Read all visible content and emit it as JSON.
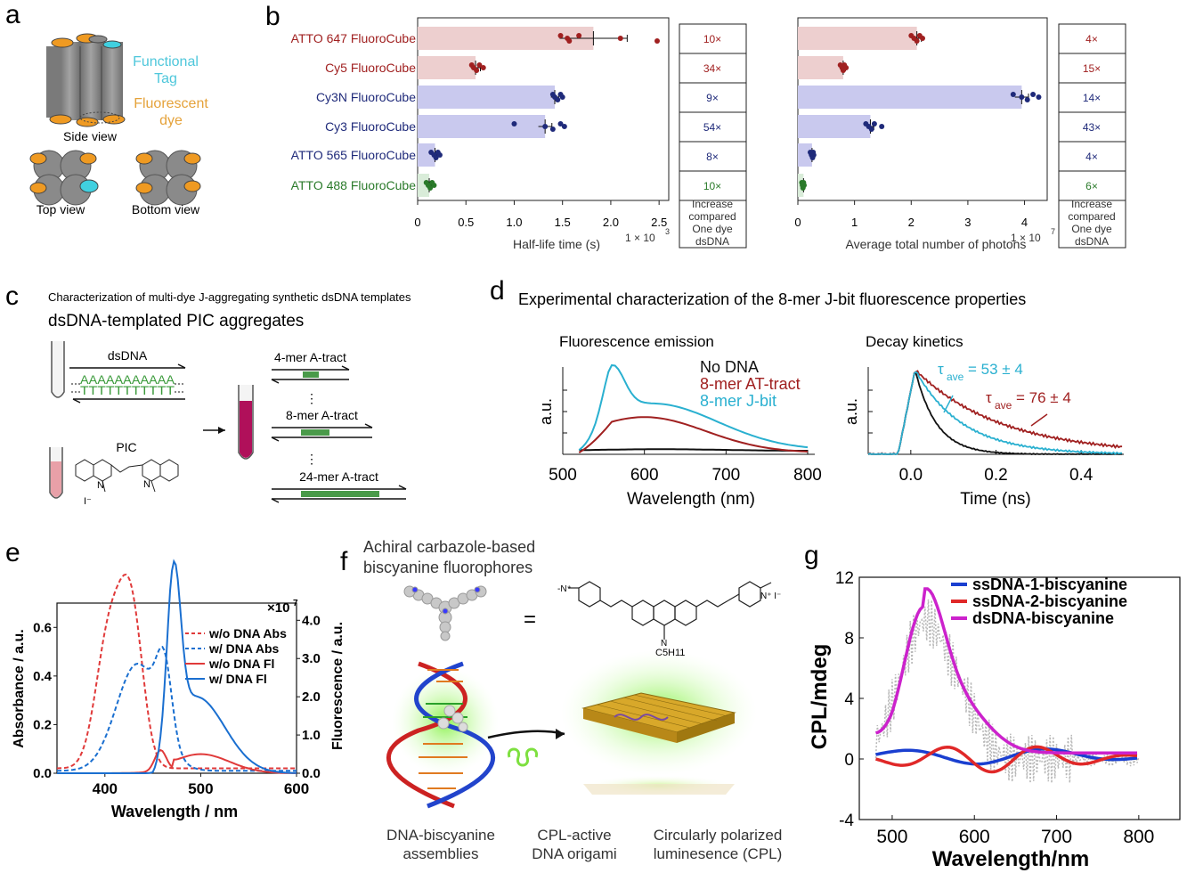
{
  "colors": {
    "bar_red": "#edcfcf",
    "bar_blue": "#c9c9ee",
    "bar_green": "#d9ecd9",
    "red": "#a02020",
    "navy": "#1f2a7a",
    "green": "#2a7a2a",
    "cyan": "#2ab0d0",
    "orange": "#ef9a22",
    "grey": "#8a8a8a",
    "magenta": "#cc22cc",
    "blue": "#1a4fd6"
  },
  "panel_a": {
    "letter": "a",
    "functional_tag": [
      "Functional",
      "Tag"
    ],
    "fluorescent_dye": [
      "Fluorescent",
      "dye"
    ],
    "side_view": "Side view",
    "top_view": "Top view",
    "bottom_view": "Bottom view"
  },
  "panel_b": {
    "letter": "b",
    "rows": [
      {
        "label": "ATTO 647 FluoroCube",
        "color": "red",
        "half_life": 1.82,
        "half_life_err": 0.35,
        "photons": 2.1,
        "photons_err": 0.08,
        "hl_increase": "10×",
        "ph_increase": "4×",
        "hl_points": [
          1.48,
          1.55,
          1.57,
          1.67,
          2.1,
          2.48
        ],
        "ph_points": [
          2.0,
          2.05,
          2.1,
          2.15,
          2.2
        ]
      },
      {
        "label": "Cy5 FluoroCube",
        "color": "red",
        "half_life": 0.6,
        "half_life_err": 0.05,
        "photons": 0.8,
        "photons_err": 0.04,
        "hl_increase": "34×",
        "ph_increase": "15×",
        "hl_points": [
          0.56,
          0.58,
          0.61,
          0.64,
          0.68
        ],
        "ph_points": [
          0.75,
          0.78,
          0.8,
          0.82,
          0.85
        ]
      },
      {
        "label": "Cy3N FluoroCube",
        "color": "navy",
        "half_life": 1.42,
        "half_life_err": 0.04,
        "photons": 3.95,
        "photons_err": 0.12,
        "hl_increase": "9×",
        "ph_increase": "14×",
        "hl_points": [
          1.4,
          1.42,
          1.45,
          1.48,
          1.5
        ],
        "ph_points": [
          3.8,
          3.95,
          4.05,
          4.15,
          4.25
        ]
      },
      {
        "label": "Cy3 FluoroCube",
        "color": "navy",
        "half_life": 1.32,
        "half_life_err": 0.07,
        "photons": 1.28,
        "photons_err": 0.06,
        "hl_increase": "54×",
        "ph_increase": "43×",
        "hl_points": [
          1.0,
          1.32,
          1.4,
          1.48,
          1.52
        ],
        "ph_points": [
          1.2,
          1.25,
          1.3,
          1.35,
          1.48
        ]
      },
      {
        "label": "ATTO  565 FluoroCube",
        "color": "navy",
        "half_life": 0.18,
        "half_life_err": 0.02,
        "photons": 0.25,
        "photons_err": 0.02,
        "hl_increase": "8×",
        "ph_increase": "4×",
        "hl_points": [
          0.14,
          0.17,
          0.19,
          0.21,
          0.23
        ],
        "ph_points": [
          0.22,
          0.24,
          0.26,
          0.27,
          0.28
        ]
      },
      {
        "label": "ATTO 488 FluoroCube",
        "color": "green",
        "half_life": 0.12,
        "half_life_err": 0.02,
        "photons": 0.1,
        "photons_err": 0.01,
        "hl_increase": "10×",
        "ph_increase": "6×",
        "hl_points": [
          0.09,
          0.11,
          0.13,
          0.15,
          0.17
        ],
        "ph_points": [
          0.07,
          0.08,
          0.09,
          0.1,
          0.11
        ]
      }
    ],
    "hl_ticks": [
      "0",
      "0.5",
      "1.0",
      "1.5",
      "2.0",
      "2.5"
    ],
    "hl_xlabel": "Half-life time (s)",
    "hl_mult": "1 × 10",
    "hl_mult_exp": "3",
    "ph_ticks": [
      "0",
      "1",
      "2",
      "3",
      "4"
    ],
    "ph_xlabel": "Average total number of photons",
    "ph_mult": "1 × 10",
    "ph_mult_exp": "7",
    "increase_label": [
      "Increase",
      "compared",
      "One dye",
      "dsDNA"
    ]
  },
  "panel_c": {
    "letter": "c",
    "subtitle": "Characterization of multi-dye J-aggregating synthetic dsDNA templates",
    "title": "dsDNA-templated PIC aggregates",
    "dsdna": "dsDNA",
    "strand_top": "AAAAAAAAAAA",
    "strand_bottom": "TTTTTTTTTTT",
    "pic": "PIC",
    "mer4": "4-mer A-tract",
    "mer8": "8-mer A-tract",
    "mer24": "24-mer A-tract",
    "ellipsis": "⋮"
  },
  "panel_d": {
    "letter": "d",
    "title": "Experimental characterization of the 8-mer J-bit fluorescence properties",
    "emission_title": "Fluorescence emission",
    "decay_title": "Decay kinetics",
    "legend": [
      "No DNA",
      "8-mer AT-tract",
      "8-mer J-bit"
    ],
    "ylabel": "a.u.",
    "em_xticks": [
      "500",
      "600",
      "700",
      "800"
    ],
    "em_xlabel": "Wavelength (nm)",
    "dk_xticks": [
      "0.0",
      "0.2",
      "0.4"
    ],
    "dk_xlabel": "Time (ns)",
    "tau1": "= 53 ± 4",
    "tau2": "= 76 ± 4",
    "tau_sym": "τ",
    "tau_sub": "ave"
  },
  "panel_e": {
    "letter": "e",
    "legend": [
      "w/o DNA Abs",
      "w/ DNA Abs",
      "w/o DNA Fl",
      "w/ DNA Fl"
    ],
    "ylabel_left": "Absorbance / a.u.",
    "ylabel_right": "Fluorescence / a.u.",
    "xlabel": "Wavelength / nm",
    "xticks": [
      "400",
      "500",
      "600"
    ],
    "yticks_left": [
      "0.0",
      "0.2",
      "0.4",
      "0.6"
    ],
    "yticks_right": [
      "0.0",
      "1.0",
      "2.0",
      "3.0",
      "4.0"
    ],
    "mult": "×10",
    "mult_exp": "7"
  },
  "panel_f": {
    "letter": "f",
    "title": [
      "Achiral carbazole-based",
      "biscyanine fluorophores"
    ],
    "equals": "=",
    "chain": "C5H11",
    "captions": [
      [
        "DNA-biscyanine",
        "assemblies"
      ],
      [
        "CPL-active",
        "DNA origami"
      ],
      [
        "Circularly polarized",
        "luminesence (CPL)"
      ]
    ]
  },
  "panel_g": {
    "letter": "g",
    "legend": [
      "ssDNA-1-biscyanine",
      "ssDNA-2-biscyanine",
      "dsDNA-biscyanine"
    ],
    "ylabel": "CPL/mdeg",
    "xlabel": "Wavelength/nm",
    "xticks": [
      "500",
      "600",
      "700",
      "800"
    ],
    "yticks": [
      "-4",
      "0",
      "4",
      "8",
      "12"
    ]
  }
}
